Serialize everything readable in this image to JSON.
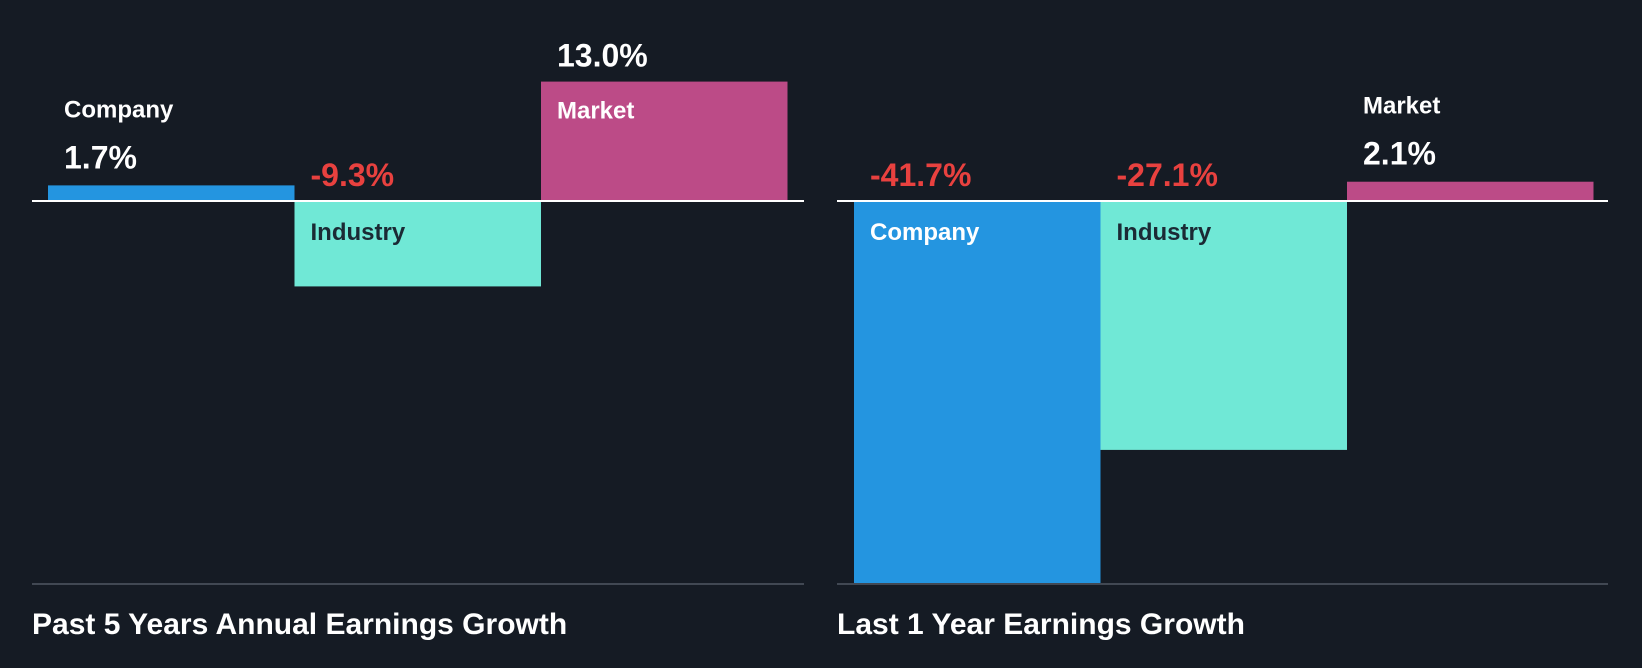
{
  "colors": {
    "background": "#151b24",
    "company": "#2495e0",
    "industry": "#70e8d6",
    "market": "#bc4b87",
    "negative_text": "#e8413f",
    "positive_text": "#ffffff",
    "dark_label": "#1b2a35",
    "axis": "#ffffff",
    "baseline": "#414853"
  },
  "chart_data": [
    {
      "type": "bar",
      "title": "Past 5 Years Annual Earnings Growth",
      "categories": [
        "Company",
        "Industry",
        "Market"
      ],
      "values": [
        1.7,
        -9.3,
        13.0
      ],
      "value_labels": [
        "1.7%",
        "-9.3%",
        "13.0%"
      ],
      "unit": "%",
      "ylim": [
        -41.7,
        13.0
      ]
    },
    {
      "type": "bar",
      "title": "Last 1 Year Earnings Growth",
      "categories": [
        "Company",
        "Industry",
        "Market"
      ],
      "values": [
        -41.7,
        -27.1,
        2.1
      ],
      "value_labels": [
        "-41.7%",
        "-27.1%",
        "2.1%"
      ],
      "unit": "%",
      "ylim": [
        -41.7,
        13.0
      ]
    }
  ]
}
